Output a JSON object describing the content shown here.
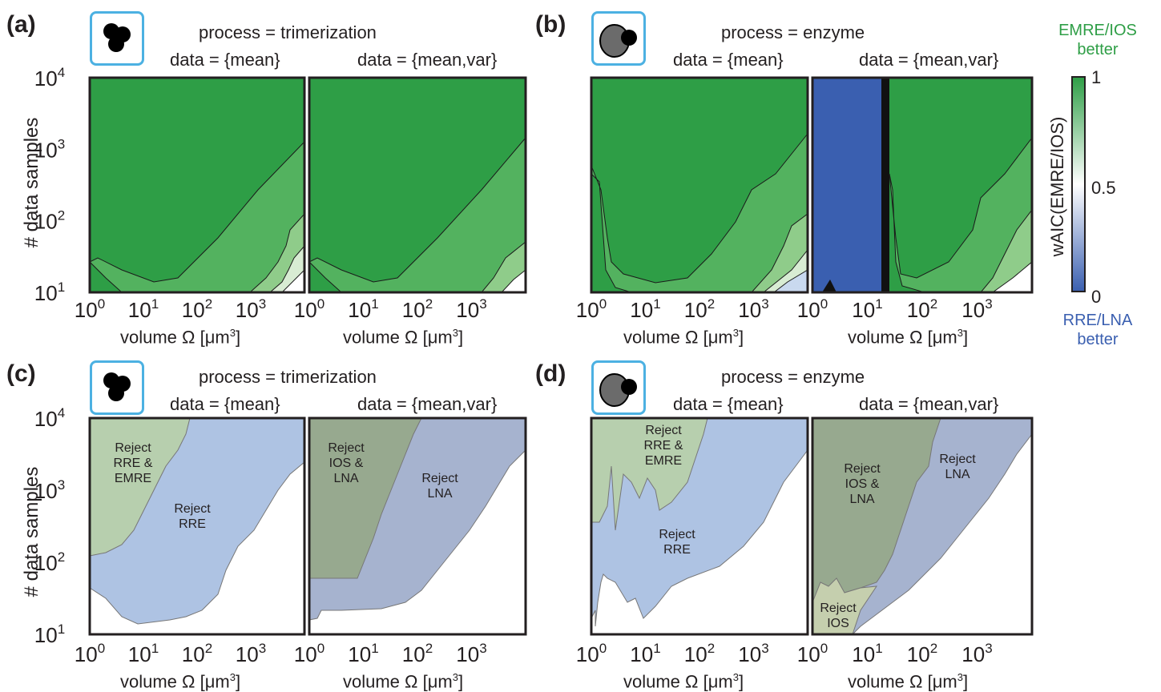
{
  "panels": {
    "a": {
      "label": "(a)",
      "process": "process = trimerization",
      "data_left": "data = {mean}",
      "data_right": "data = {mean,var}"
    },
    "b": {
      "label": "(b)",
      "process": "process = enzyme",
      "data_left": "data = {mean}",
      "data_right": "data = {mean,var}"
    },
    "c": {
      "label": "(c)",
      "process": "process = trimerization",
      "data_left": "data = {mean}",
      "data_right": "data = {mean,var}"
    },
    "d": {
      "label": "(d)",
      "process": "process = enzyme",
      "data_left": "data = {mean}",
      "data_right": "data = {mean,var}"
    }
  },
  "axes": {
    "ylabel": "# data samples",
    "xlabel_text": "volume Ω [μm",
    "xlabel_sup": "3",
    "xlabel_end": "]",
    "x_tick_base": "10",
    "x_tick_exps": [
      "0",
      "1",
      "2",
      "3"
    ],
    "y_tick_base": "10",
    "y_tick_exps": [
      "4",
      "3",
      "2",
      "1"
    ]
  },
  "colorbar": {
    "top_label_1": "EMRE/IOS",
    "top_label_2": "better",
    "bottom_label_1": "RRE/LNA",
    "bottom_label_2": "better",
    "title": "wAIC(EMRE/IOS)",
    "ticks": [
      "1",
      "0.5",
      "0"
    ],
    "color_high": "#2e9e46",
    "color_mid": "#ffffff",
    "color_low": "#3a5fb0"
  },
  "colors": {
    "green_dark": "#2e9e46",
    "green_mid": "#53b25f",
    "green_light": "#8fcc8a",
    "blue": "#3a5fb0",
    "region_green": "#b7cfae",
    "region_blue": "#aec3e3",
    "region_darkgreen": "#97a98f",
    "region_greyblue": "#a6b3cf",
    "region_olive": "#c5cfae",
    "icon_border": "#4cb1e2"
  },
  "regions": {
    "c_left": [
      "Reject\nRRE &\nEMRE",
      "Reject\nRRE"
    ],
    "c_right": [
      "Reject\nIOS &\nLNA",
      "Reject\nLNA"
    ],
    "d_left": [
      "Reject\nRRE &\nEMRE",
      "Reject\nRRE"
    ],
    "d_right": [
      "Reject\nIOS &\nLNA",
      "Reject\nLNA",
      "Reject\nIOS"
    ]
  },
  "chart_data": [
    {
      "type": "heatmap",
      "panel": "a",
      "subplot": "data = {mean}",
      "x_scale": "log",
      "y_scale": "log",
      "xlim": [
        1,
        10000
      ],
      "ylim": [
        10,
        10000
      ],
      "z": "wAIC(EMRE/IOS)",
      "zlim": [
        0,
        1
      ]
    },
    {
      "type": "heatmap",
      "panel": "a",
      "subplot": "data = {mean,var}",
      "x_scale": "log",
      "y_scale": "log",
      "xlim": [
        1,
        10000
      ],
      "ylim": [
        10,
        10000
      ],
      "z": "wAIC(EMRE/IOS)",
      "zlim": [
        0,
        1
      ]
    },
    {
      "type": "heatmap",
      "panel": "b",
      "subplot": "data = {mean}",
      "x_scale": "log",
      "y_scale": "log",
      "xlim": [
        1,
        10000
      ],
      "ylim": [
        10,
        10000
      ],
      "z": "wAIC(EMRE/IOS)",
      "zlim": [
        0,
        1
      ]
    },
    {
      "type": "heatmap",
      "panel": "b",
      "subplot": "data = {mean,var}",
      "x_scale": "log",
      "y_scale": "log",
      "xlim": [
        1,
        10000
      ],
      "ylim": [
        10,
        10000
      ],
      "z": "wAIC(EMRE/IOS)",
      "zlim": [
        0,
        1
      ]
    },
    {
      "type": "area",
      "panel": "c",
      "subplot": "data = {mean}",
      "x_scale": "log",
      "y_scale": "log",
      "xlim": [
        1,
        10000
      ],
      "ylim": [
        10,
        10000
      ],
      "regions": [
        "Reject RRE & EMRE",
        "Reject RRE"
      ]
    },
    {
      "type": "area",
      "panel": "c",
      "subplot": "data = {mean,var}",
      "x_scale": "log",
      "y_scale": "log",
      "xlim": [
        1,
        10000
      ],
      "ylim": [
        10,
        10000
      ],
      "regions": [
        "Reject IOS & LNA",
        "Reject LNA"
      ]
    },
    {
      "type": "area",
      "panel": "d",
      "subplot": "data = {mean}",
      "x_scale": "log",
      "y_scale": "log",
      "xlim": [
        1,
        10000
      ],
      "ylim": [
        10,
        10000
      ],
      "regions": [
        "Reject RRE & EMRE",
        "Reject RRE"
      ]
    },
    {
      "type": "area",
      "panel": "d",
      "subplot": "data = {mean,var}",
      "x_scale": "log",
      "y_scale": "log",
      "xlim": [
        1,
        10000
      ],
      "ylim": [
        10,
        10000
      ],
      "regions": [
        "Reject IOS & LNA",
        "Reject LNA",
        "Reject IOS"
      ]
    }
  ]
}
